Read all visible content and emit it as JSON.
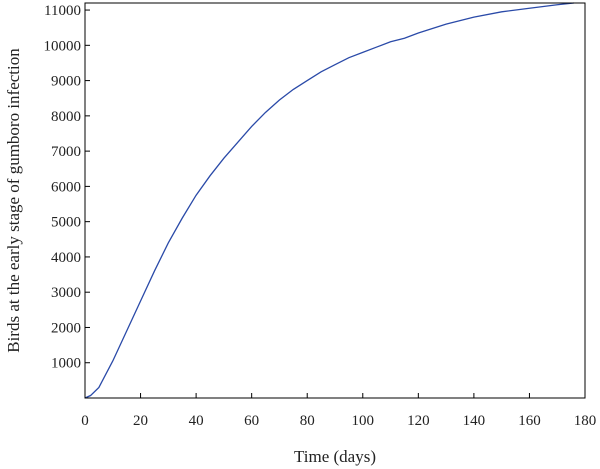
{
  "chart_data": {
    "type": "line",
    "title": "",
    "xlabel": "Time (days)",
    "ylabel": "Birds at the early stage of gumboro infection",
    "xlim": [
      0,
      180
    ],
    "ylim": [
      0,
      11200
    ],
    "grid": false,
    "x_ticks": [
      0,
      20,
      40,
      60,
      80,
      100,
      120,
      140,
      160,
      180
    ],
    "y_ticks": [
      1000,
      2000,
      3000,
      4000,
      5000,
      6000,
      7000,
      8000,
      9000,
      10000,
      11000
    ],
    "line_color": "#2a4aa8",
    "series": [
      {
        "x": [
          0,
          2,
          5,
          10,
          15,
          20,
          25,
          30,
          35,
          40,
          45,
          50,
          55,
          60,
          65,
          70,
          75,
          80,
          85,
          90,
          95,
          100,
          105,
          110,
          115,
          120,
          130,
          140,
          150,
          160,
          170,
          176
        ],
        "y": [
          0,
          70,
          300,
          1050,
          1900,
          2750,
          3600,
          4400,
          5100,
          5750,
          6300,
          6800,
          7250,
          7700,
          8100,
          8450,
          8750,
          9000,
          9250,
          9450,
          9650,
          9800,
          9950,
          10100,
          10200,
          10350,
          10600,
          10800,
          10950,
          11050,
          11150,
          11200
        ]
      }
    ]
  }
}
